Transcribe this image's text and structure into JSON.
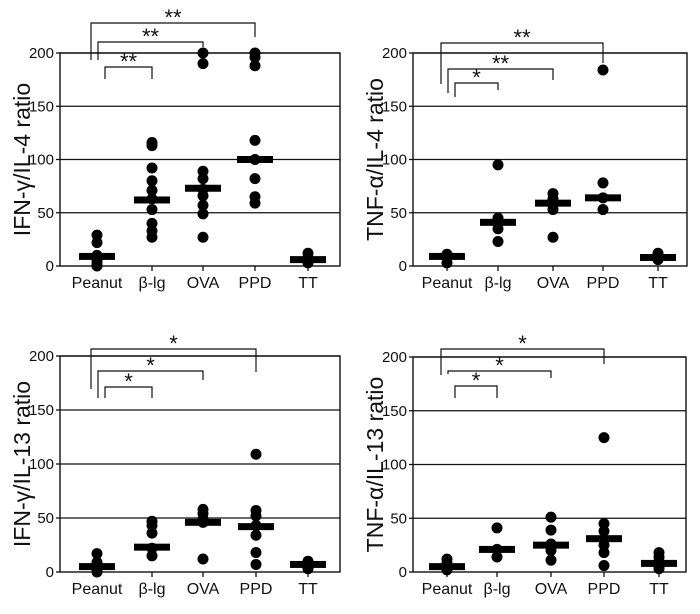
{
  "chart_data": [
    {
      "type": "scatter",
      "ylabel": "IFN-γ/IL-4 ratio",
      "categories": [
        "Peanut",
        "β-lg",
        "OVA",
        "PPD",
        "TT"
      ],
      "ylim": [
        0,
        200
      ],
      "yticks": [
        0,
        50,
        100,
        150,
        200
      ],
      "grid": true,
      "points": [
        [
          29,
          22,
          10,
          5,
          2,
          0
        ],
        [
          116,
          113,
          92,
          80,
          71,
          63,
          53,
          40,
          33,
          27
        ],
        [
          201,
          190,
          89,
          82,
          72,
          66,
          57,
          49,
          27
        ],
        [
          200,
          196,
          188,
          118,
          100,
          82,
          65,
          59
        ],
        [
          12,
          8,
          5,
          3
        ]
      ],
      "medians": [
        9,
        62,
        73,
        100,
        6
      ],
      "brackets": [
        {
          "from": 0,
          "to": 3,
          "label": "**"
        },
        {
          "from": 0,
          "to": 2,
          "label": "**"
        },
        {
          "from": 0,
          "to": 1,
          "label": "**"
        }
      ]
    },
    {
      "type": "scatter",
      "ylabel": "TNF-α/IL-4 ratio",
      "categories": [
        "Peanut",
        "β-lg",
        "OVA",
        "PPD",
        "TT"
      ],
      "ylim": [
        0,
        200
      ],
      "yticks": [
        0,
        50,
        100,
        150,
        200
      ],
      "grid": true,
      "points": [
        [
          11,
          8,
          3
        ],
        [
          95,
          45,
          40,
          35,
          23
        ],
        [
          68,
          63,
          57,
          53,
          27
        ],
        [
          184,
          78,
          64,
          53
        ],
        [
          12,
          9,
          6
        ]
      ],
      "medians": [
        9,
        41,
        59,
        64,
        8
      ],
      "brackets": [
        {
          "from": 0,
          "to": 3,
          "label": "**"
        },
        {
          "from": 0,
          "to": 2,
          "label": "**"
        },
        {
          "from": 0,
          "to": 1,
          "label": "*"
        }
      ]
    },
    {
      "type": "scatter",
      "ylabel": "IFN-γ/IL-13 ratio",
      "categories": [
        "Peanut",
        "β-lg",
        "OVA",
        "PPD",
        "TT"
      ],
      "ylim": [
        0,
        200
      ],
      "yticks": [
        0,
        50,
        100,
        150,
        200
      ],
      "grid": true,
      "points": [
        [
          17,
          9,
          5,
          2,
          0
        ],
        [
          47,
          43,
          36,
          22,
          15
        ],
        [
          58,
          54,
          49,
          46,
          12
        ],
        [
          109,
          57,
          52,
          43,
          34,
          18,
          7
        ],
        [
          10,
          6,
          3
        ]
      ],
      "medians": [
        5,
        23,
        46,
        42,
        7
      ],
      "brackets": [
        {
          "from": 0,
          "to": 3,
          "label": "*"
        },
        {
          "from": 0,
          "to": 2,
          "label": "*"
        },
        {
          "from": 0,
          "to": 1,
          "label": "*"
        }
      ]
    },
    {
      "type": "scatter",
      "ylabel": "TNF-α/IL-13 ratio",
      "categories": [
        "Peanut",
        "β-lg",
        "OVA",
        "PPD",
        "TT"
      ],
      "ylim": [
        0,
        200
      ],
      "yticks": [
        0,
        50,
        100,
        150,
        200
      ],
      "grid": true,
      "points": [
        [
          12,
          8,
          4,
          2
        ],
        [
          41,
          21,
          14
        ],
        [
          51,
          39,
          26,
          20,
          11
        ],
        [
          125,
          45,
          38,
          30,
          25,
          18,
          6
        ],
        [
          18,
          14,
          10,
          5,
          3
        ]
      ],
      "medians": [
        5,
        21,
        25,
        31,
        8
      ],
      "brackets": [
        {
          "from": 0,
          "to": 3,
          "label": "*"
        },
        {
          "from": 0,
          "to": 2,
          "label": "*"
        },
        {
          "from": 0,
          "to": 1,
          "label": "*"
        }
      ]
    }
  ]
}
